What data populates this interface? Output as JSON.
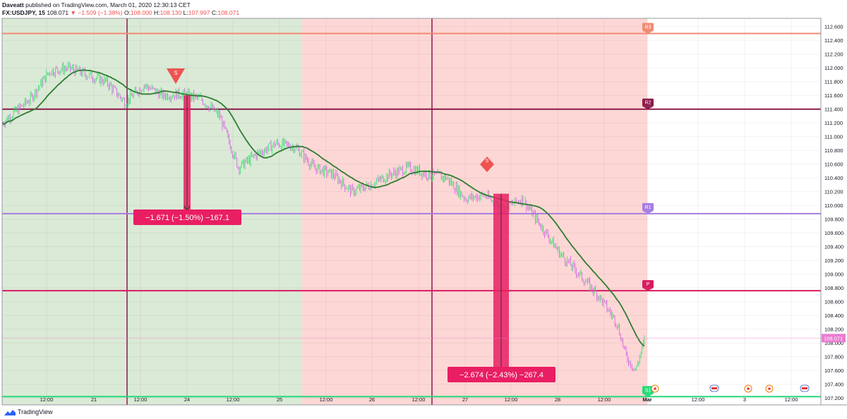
{
  "header": {
    "author": "Daveatt",
    "published_text": "published on TradingView.com, March 01, 2020 12:30:13 CET",
    "symbol": "FX:USDJPY, 15",
    "last": "108.071",
    "change_arrow": "▼",
    "change": "−1.509 (−1.38%)",
    "open_label": "O:",
    "open": "108.000",
    "high_label": "H:",
    "high": "108.130",
    "low_label": "L:",
    "low": "107.997",
    "close_label": "C:",
    "close": "108.071"
  },
  "footer": {
    "brand": "TradingView"
  },
  "colors": {
    "bg_green": "#dbead6",
    "bg_red": "#fdd7d5",
    "bull": "#2ee06a",
    "bear": "#d65ae8",
    "ma": "#2e7d32",
    "measure": "#e91e63",
    "price_tag": "#ea7cd0"
  },
  "chart_data": {
    "type": "candlestick",
    "y_ticks": [
      "112.600",
      "112.400",
      "112.200",
      "112.000",
      "111.800",
      "111.600",
      "111.400",
      "111.200",
      "111.000",
      "110.800",
      "110.600",
      "110.400",
      "110.200",
      "110.000",
      "109.800",
      "109.600",
      "109.400",
      "109.200",
      "109.000",
      "108.800",
      "108.600",
      "108.400",
      "108.200",
      "108.000",
      "107.800",
      "107.600",
      "107.400",
      "107.200"
    ],
    "ylim": [
      107.1,
      112.72
    ],
    "x_ticks": [
      "12:00",
      "21",
      "12:00",
      "24",
      "12:00",
      "25",
      "12:00",
      "26",
      "12:00",
      "27",
      "12:00",
      "28",
      "12:00",
      "Mar",
      "12:00",
      "3",
      "12:00"
    ],
    "current_price": "108.071",
    "pivot_levels": [
      {
        "label": "R3",
        "value": 112.5,
        "color": "#f28b74"
      },
      {
        "label": "R2",
        "value": 111.4,
        "color": "#8b1a4a"
      },
      {
        "label": "R1",
        "value": 109.88,
        "color": "#a67ee0"
      },
      {
        "label": "P",
        "value": 108.76,
        "color": "#d81b60"
      },
      {
        "label": "S1",
        "value": 107.22,
        "color": "#26d97a"
      }
    ],
    "price_path": [
      [
        0,
        111.2
      ],
      [
        3,
        111.55
      ],
      [
        5,
        111.95
      ],
      [
        7,
        112.0
      ],
      [
        9,
        111.9
      ],
      [
        11,
        111.8
      ],
      [
        13,
        111.5
      ],
      [
        15,
        111.75
      ],
      [
        17,
        111.6
      ],
      [
        19,
        111.62
      ],
      [
        21,
        111.55
      ],
      [
        23,
        111.3
      ],
      [
        25,
        110.55
      ],
      [
        27,
        110.75
      ],
      [
        29,
        110.9
      ],
      [
        31,
        110.85
      ],
      [
        33,
        110.55
      ],
      [
        35,
        110.45
      ],
      [
        37,
        110.2
      ],
      [
        39,
        110.3
      ],
      [
        41,
        110.45
      ],
      [
        43,
        110.55
      ],
      [
        45,
        110.45
      ],
      [
        47,
        110.4
      ],
      [
        49,
        110.1
      ],
      [
        51,
        110.15
      ],
      [
        53,
        109.95
      ],
      [
        55,
        110.1
      ],
      [
        57,
        109.7
      ],
      [
        59,
        109.3
      ],
      [
        61,
        109.0
      ],
      [
        63,
        108.7
      ],
      [
        65,
        108.3
      ],
      [
        66,
        107.8
      ],
      [
        67,
        107.6
      ],
      [
        68,
        108.07
      ]
    ],
    "measures": [
      {
        "label": "−1.671 (−1.50%) −167.1",
        "from": 111.6,
        "to": 109.93
      },
      {
        "label": "−2.674 (−2.43%) −267.4",
        "from": 110.17,
        "to": 107.49
      }
    ],
    "signals": [
      {
        "type": "sell",
        "label": "S"
      },
      {
        "type": "sell-diamond",
        "label": "S"
      }
    ]
  }
}
